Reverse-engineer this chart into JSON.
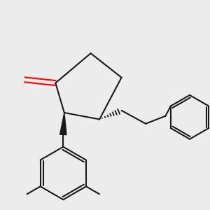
{
  "background_color": "#ececec",
  "bond_color": "#1a1a1a",
  "oxygen_color": "#ff0000",
  "line_width": 1.5,
  "fig_width": 3.0,
  "fig_height": 3.0,
  "dpi": 100
}
